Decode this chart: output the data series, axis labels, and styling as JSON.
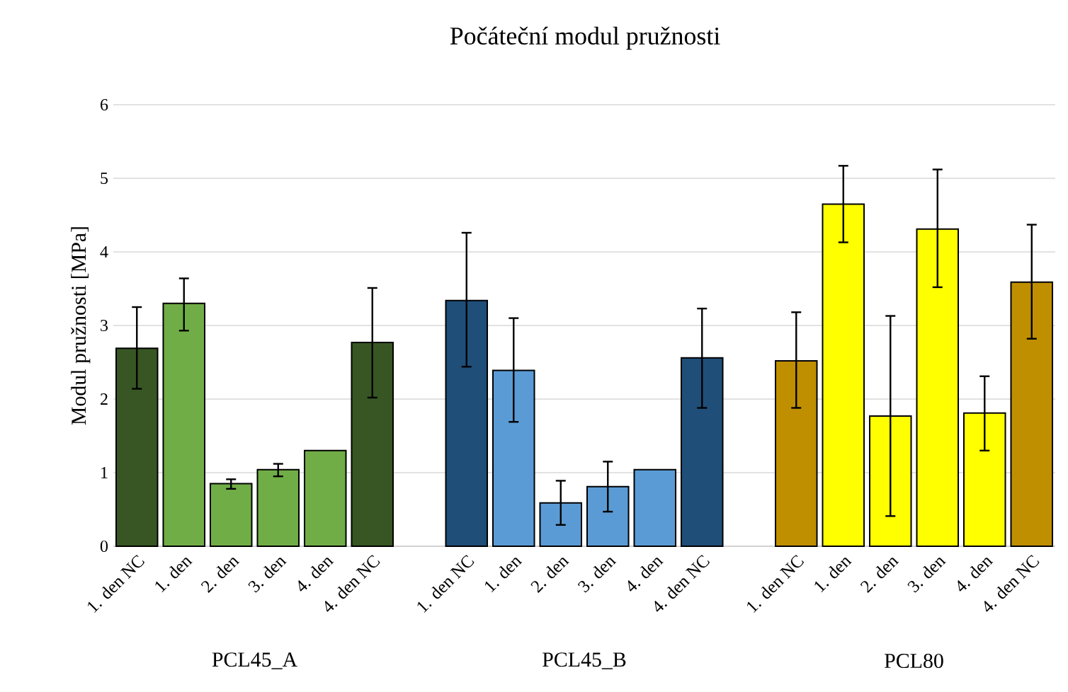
{
  "chart_data": {
    "type": "bar",
    "title": "Počáteční modul pružnosti",
    "ylabel": "Modul pružnosti [MPa]",
    "categories": [
      "1. den NC",
      "1. den",
      "2. den",
      "3. den",
      "4. den",
      "4. den NC",
      null,
      "1. den NC",
      "1. den",
      "2. den",
      "3. den",
      "4. den",
      "4. den NC",
      null,
      "1. den NC",
      "1. den",
      "2. den",
      "3. den",
      "4. den",
      "4. den NC"
    ],
    "values": [
      2.69,
      3.3,
      0.85,
      1.04,
      1.3,
      2.77,
      null,
      3.34,
      2.39,
      0.59,
      0.81,
      1.04,
      2.56,
      null,
      2.52,
      4.65,
      1.77,
      4.31,
      1.81,
      3.59
    ],
    "errors": [
      [
        2.14,
        3.25
      ],
      [
        2.93,
        3.64
      ],
      [
        0.78,
        0.91
      ],
      [
        0.95,
        1.12
      ],
      null,
      [
        2.02,
        3.51
      ],
      null,
      [
        2.44,
        4.26
      ],
      [
        1.69,
        3.1
      ],
      [
        0.29,
        0.89
      ],
      [
        0.47,
        1.15
      ],
      null,
      [
        1.88,
        3.23
      ],
      null,
      [
        1.88,
        3.18
      ],
      [
        4.13,
        5.17
      ],
      [
        0.41,
        3.13
      ],
      [
        3.52,
        5.12
      ],
      [
        1.3,
        2.31
      ],
      [
        2.82,
        4.37
      ]
    ],
    "colors": [
      "#375623",
      "#70ad47",
      "#70ad47",
      "#70ad47",
      "#70ad47",
      "#375623",
      null,
      "#1f4e79",
      "#5b9bd5",
      "#5b9bd5",
      "#5b9bd5",
      "#5b9bd5",
      "#1f4e79",
      null,
      "#bf8f00",
      "#ffff00",
      "#ffff00",
      "#ffff00",
      "#ffff00",
      "#bf8f00"
    ],
    "ylim": [
      0,
      6
    ],
    "yticks": [
      0,
      1,
      2,
      3,
      4,
      5,
      6
    ],
    "grid": "y",
    "annotations": [
      "PCL45_A",
      "PCL45_B",
      "PCL80"
    ]
  }
}
